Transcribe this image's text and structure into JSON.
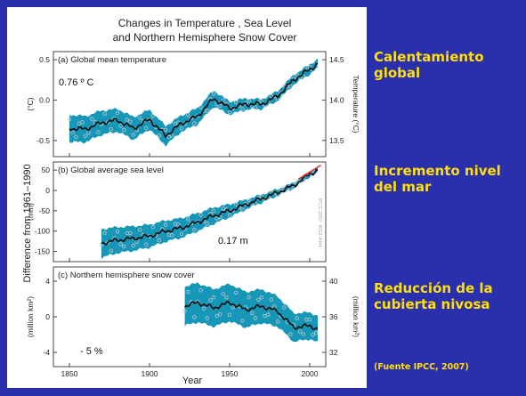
{
  "figure": {
    "title_line1": "Changes in Temperature , Sea Level",
    "title_line2": "and Northern Hemisphere Snow Cover",
    "shared_ylabel": "Difference from 1961–1990",
    "xlabel": "Year",
    "watermark": "IPCC 2007: WG1-AR4"
  },
  "side": {
    "label1_line1": "Calentamiento",
    "label1_line2": "global",
    "label2_line1": "Incremento nivel",
    "label2_line2": "del mar",
    "label3_line1": "Reducción de la",
    "label3_line2": "cubierta nivosa",
    "source": "(Fuente IPCC, 2007)"
  },
  "colors": {
    "background": "#2a2fae",
    "side_text": "#ffe000",
    "band": "#1797b8",
    "curve": "#0d0d0d",
    "points": "#c0c8cc",
    "trend": "#e03030"
  },
  "chart_data": [
    {
      "type": "line",
      "title": "(a) Global mean temperature",
      "ylabel": "(°C)",
      "y2label": "Temperature (°C)",
      "annotation": "0.76 º C",
      "xlim": [
        1840,
        2010
      ],
      "ylim": [
        -0.7,
        0.6
      ],
      "yticks": [
        -0.5,
        0.0,
        0.5
      ],
      "ytick_labels": [
        "-0.5",
        "0.0",
        "0.5"
      ],
      "y2ticks": [
        -0.5,
        0.0,
        0.5
      ],
      "y2tick_labels": [
        "13.5",
        "14.0",
        "14.5"
      ],
      "x": [
        1850,
        1860,
        1870,
        1880,
        1890,
        1900,
        1910,
        1920,
        1930,
        1940,
        1950,
        1960,
        1970,
        1980,
        1990,
        2000,
        2005
      ],
      "series": [
        {
          "values": [
            -0.35,
            -0.36,
            -0.28,
            -0.25,
            -0.35,
            -0.24,
            -0.44,
            -0.29,
            -0.2,
            0.02,
            -0.1,
            -0.05,
            -0.05,
            0.05,
            0.25,
            0.38,
            0.45
          ]
        }
      ],
      "band_halfwidth": [
        0.17,
        0.16,
        0.15,
        0.14,
        0.14,
        0.12,
        0.12,
        0.1,
        0.1,
        0.1,
        0.08,
        0.07,
        0.06,
        0.06,
        0.06,
        0.06,
        0.06
      ]
    },
    {
      "type": "line",
      "title": "(b) Global average sea level",
      "ylabel": "(mm)",
      "annotation": "0.17 m",
      "xlim": [
        1840,
        2010
      ],
      "ylim": [
        -175,
        70
      ],
      "yticks": [
        50,
        0,
        -50,
        -100,
        -150
      ],
      "ytick_labels": [
        "50",
        "0",
        "-50",
        "-100",
        "-150"
      ],
      "x": [
        1870,
        1880,
        1890,
        1900,
        1910,
        1920,
        1930,
        1940,
        1950,
        1960,
        1970,
        1980,
        1990,
        2000,
        2005
      ],
      "series": [
        {
          "values": [
            -130,
            -122,
            -118,
            -112,
            -100,
            -92,
            -78,
            -62,
            -50,
            -35,
            -20,
            -5,
            12,
            40,
            50
          ]
        }
      ],
      "band_halfwidth": [
        35,
        32,
        30,
        28,
        26,
        24,
        22,
        20,
        16,
        12,
        10,
        8,
        7,
        6,
        6
      ],
      "trend": {
        "x": [
          1993,
          2007
        ],
        "values": [
          28,
          62
        ]
      }
    },
    {
      "type": "line",
      "title": "(c) Northern hemisphere snow cover",
      "ylabel": "(million km²)",
      "y2label": "(million km²)",
      "annotation": "- 5 %",
      "xlim": [
        1840,
        2010
      ],
      "ylim": [
        -5.6,
        5.6
      ],
      "yticks": [
        4,
        0,
        -4
      ],
      "ytick_labels": [
        "4",
        "0",
        "-4"
      ],
      "y2ticks": [
        4,
        0,
        -4
      ],
      "y2tick_labels": [
        "40",
        "36",
        "32"
      ],
      "x": [
        1922,
        1930,
        1940,
        1950,
        1960,
        1970,
        1980,
        1990,
        2000,
        2005
      ],
      "series": [
        {
          "values": [
            1.2,
            1.6,
            1.0,
            1.6,
            0.8,
            1.2,
            0.6,
            -1.2,
            -1.0,
            -1.4
          ]
        }
      ],
      "band_halfwidth": [
        2.2,
        2.2,
        2.1,
        2.1,
        2.0,
        1.9,
        1.7,
        1.6,
        1.5,
        1.5
      ]
    }
  ],
  "xaxis": {
    "ticks": [
      1850,
      1900,
      1950,
      2000
    ],
    "tick_labels": [
      "1850",
      "1900",
      "1950",
      "2000"
    ]
  }
}
